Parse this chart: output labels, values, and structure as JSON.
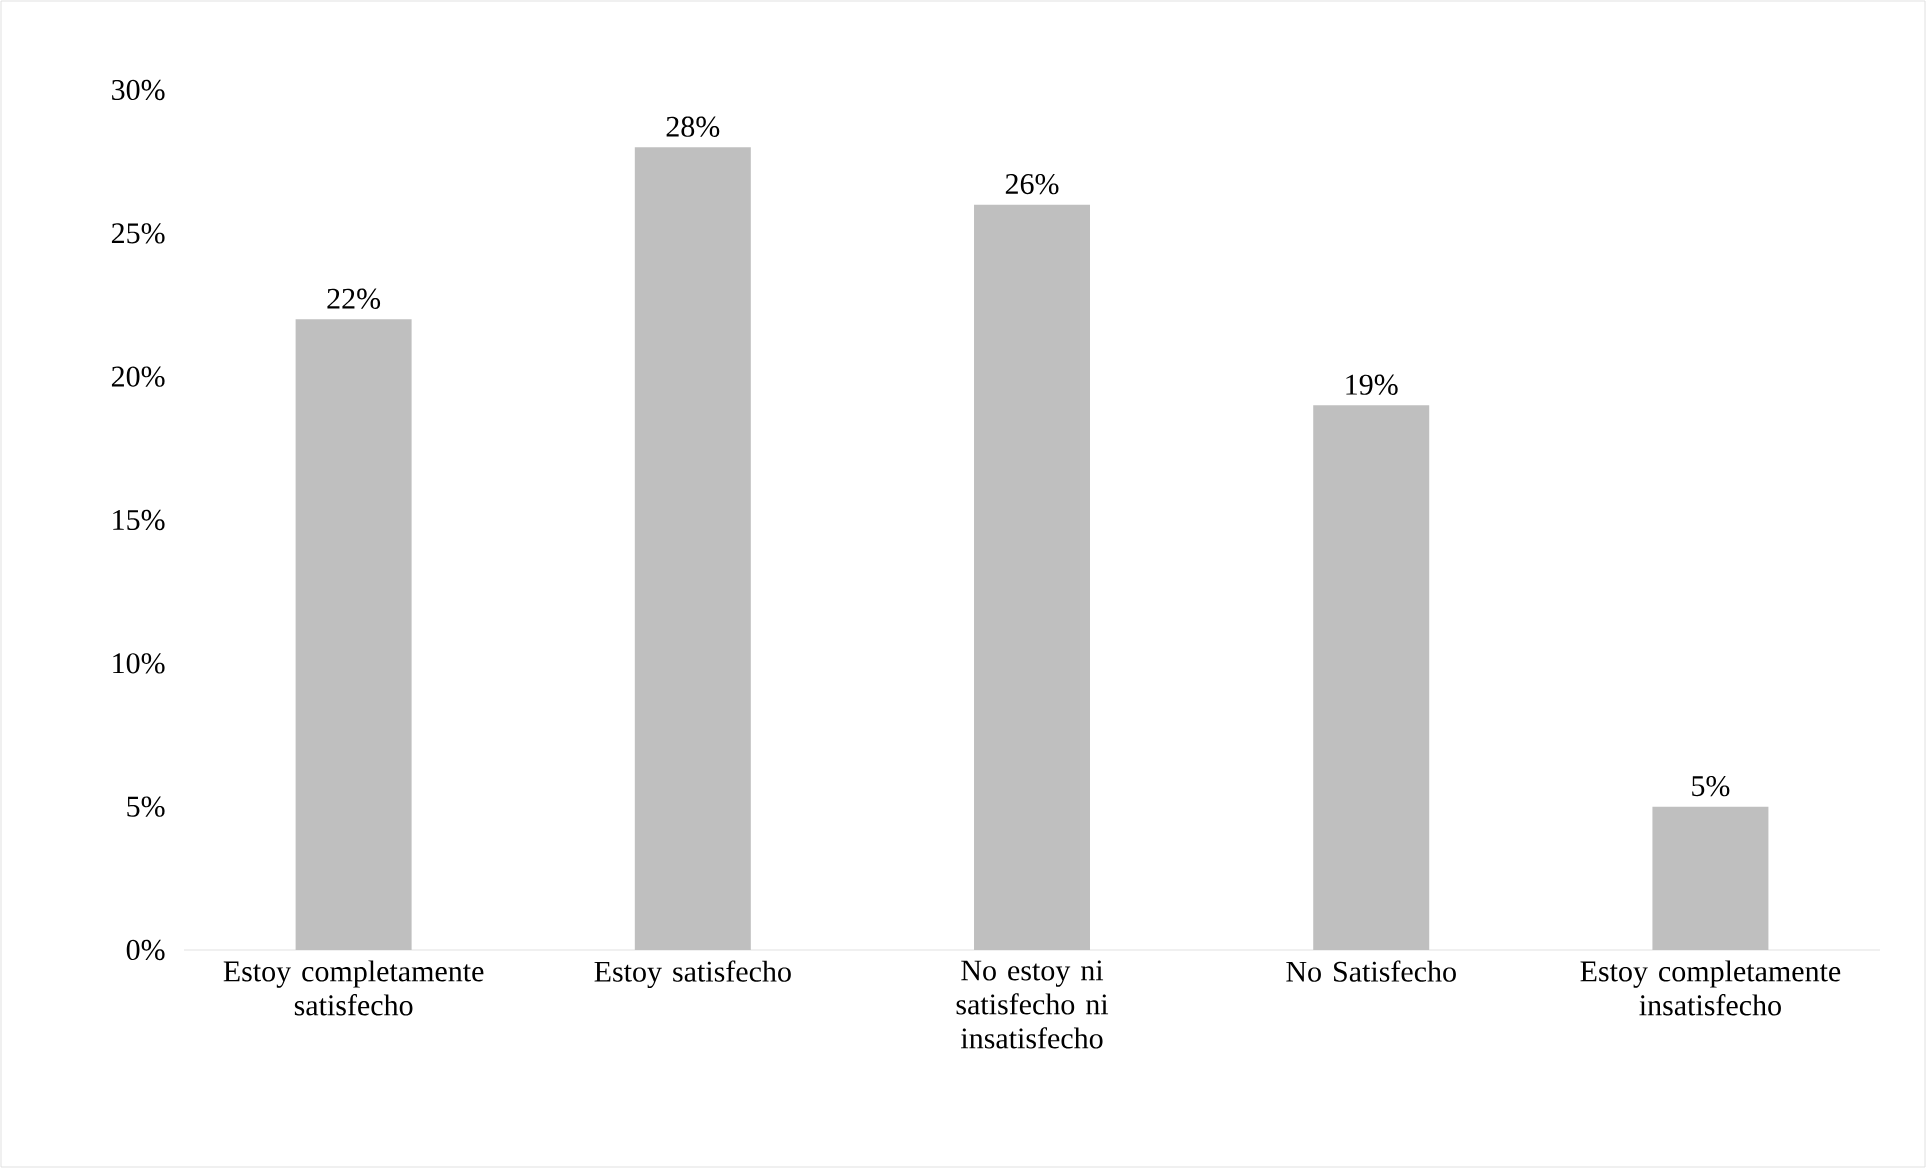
{
  "chart_data": {
    "type": "bar",
    "categories": [
      "Estoy completamente satisfecho",
      "Estoy satisfecho",
      "No estoy ni satisfecho ni insatisfecho",
      "No Satisfecho",
      "Estoy completamente insatisfecho"
    ],
    "values": [
      22,
      28,
      26,
      19,
      5
    ],
    "value_labels": [
      "22%",
      "28%",
      "26%",
      "19%",
      "5%"
    ],
    "color": "#bfbfbf",
    "ylim": [
      0,
      30
    ],
    "yticks": [
      {
        "value": 0,
        "label": "0%"
      },
      {
        "value": 5,
        "label": "5%"
      },
      {
        "value": 10,
        "label": "10%"
      },
      {
        "value": 15,
        "label": "15%"
      },
      {
        "value": 20,
        "label": "20%"
      },
      {
        "value": 25,
        "label": "25%"
      },
      {
        "value": 30,
        "label": "30%"
      }
    ],
    "grid": false
  }
}
